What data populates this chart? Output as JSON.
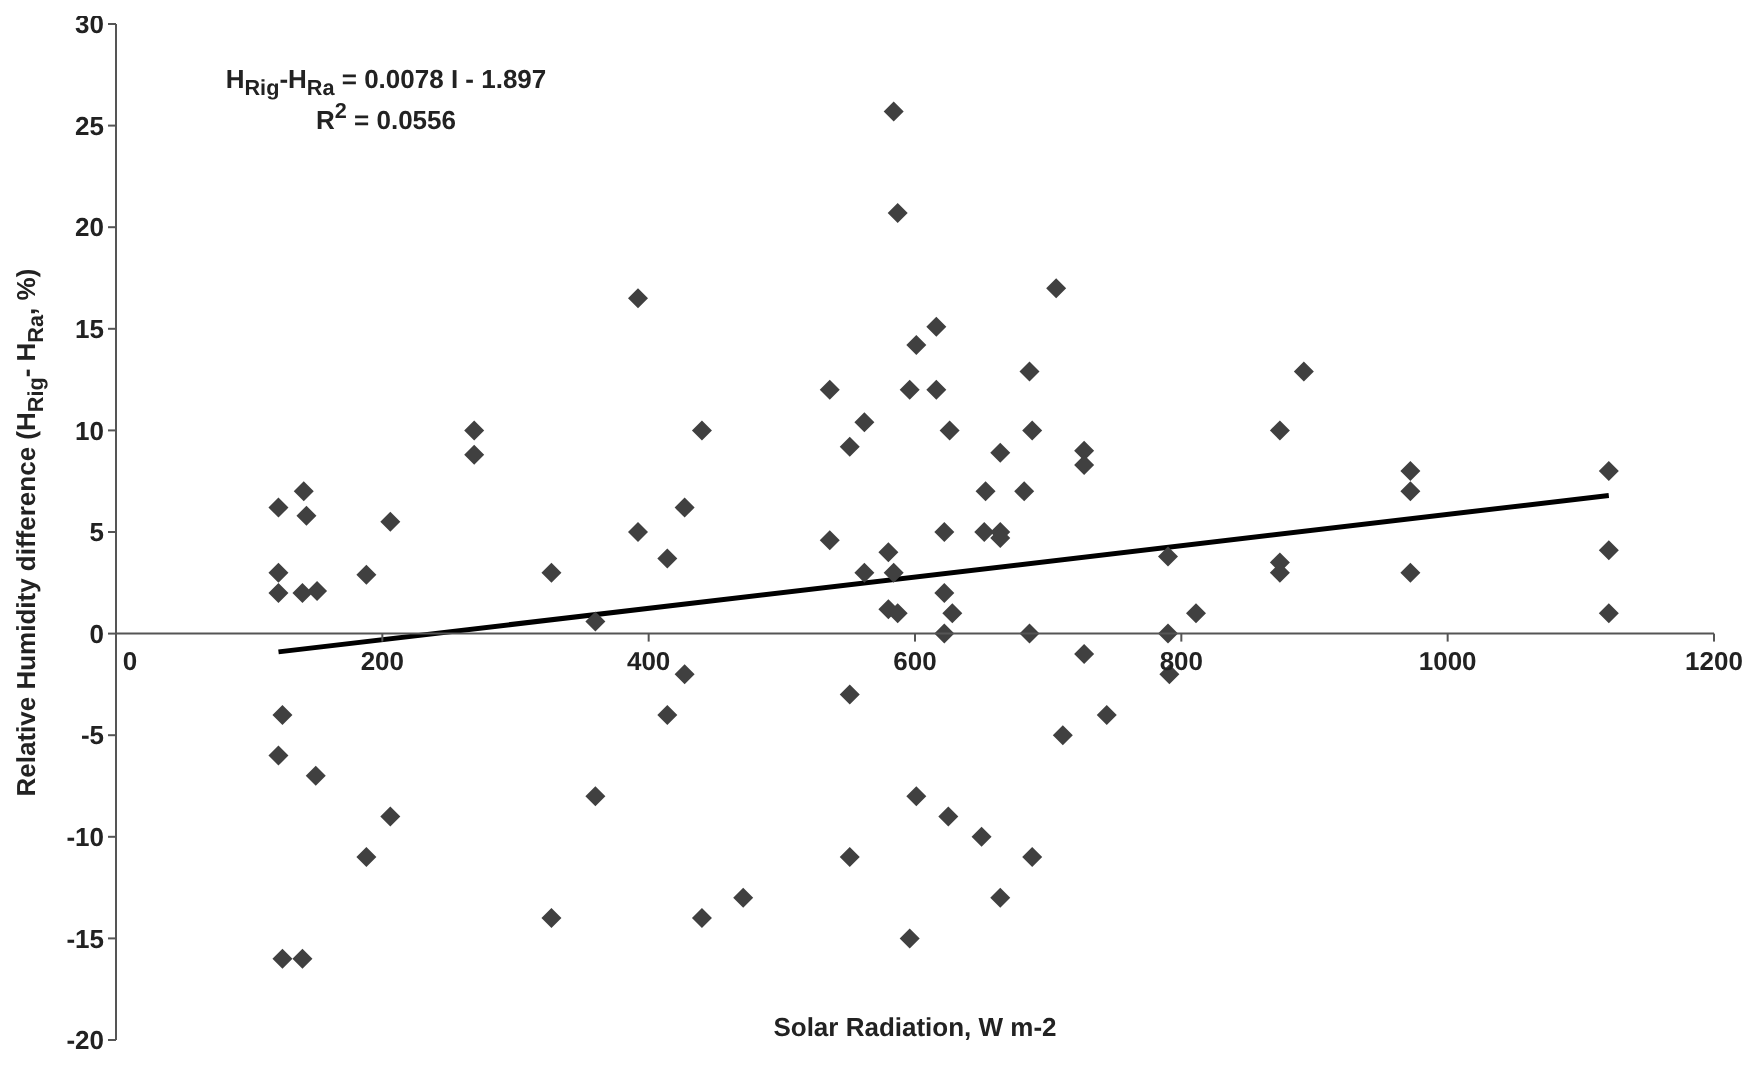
{
  "chart_data": {
    "type": "scatter",
    "xlabel": "Solar Radiation, W m-2",
    "ylabel": "Relative Humidity difference (H$_{Rig}$- H$_{Ra}$, %)",
    "annotations": [
      "H$_{Rig}$-H$_{Ra}$ = 0.0078 I - 1.897",
      "R$^{2}$ = 0.0556"
    ],
    "xlim": [
      0,
      1200
    ],
    "xticks": [
      0,
      200,
      400,
      600,
      800,
      1000,
      1200
    ],
    "ylim": [
      -20,
      30
    ],
    "yticks": [
      -20,
      -15,
      -10,
      -5,
      0,
      5,
      10,
      15,
      20,
      25,
      30
    ],
    "grid": false,
    "legend": false,
    "marker": "diamond",
    "series": [
      {
        "color": "#404040",
        "x": [
          122,
          122,
          122,
          141,
          143,
          140,
          151,
          188,
          206,
          269,
          269,
          327,
          360,
          392,
          392,
          414,
          427,
          440,
          536,
          536,
          551,
          562,
          562,
          584,
          587,
          601,
          616,
          596,
          616,
          626,
          706,
          686,
          688,
          664,
          653,
          682,
          727,
          727,
          622,
          652,
          664,
          664,
          580,
          584,
          622,
          580,
          587,
          628,
          622,
          686,
          790,
          790,
          791,
          811,
          874,
          892,
          874,
          874,
          972,
          972,
          972,
          1121,
          1121,
          1121,
          727,
          744,
          711,
          601,
          625,
          650,
          688,
          664,
          596,
          125,
          122,
          150,
          206,
          188,
          125,
          140,
          327,
          360,
          414,
          427,
          440,
          471,
          551,
          551
        ],
        "values": [
          6.2,
          3,
          2,
          7,
          5.8,
          2,
          2.1,
          2.9,
          5.5,
          10,
          8.8,
          3,
          0.6,
          16.5,
          5,
          3.7,
          6.2,
          10,
          12,
          4.6,
          9.2,
          10.4,
          3,
          25.7,
          20.7,
          14.2,
          15.1,
          12,
          12,
          10,
          17,
          12.9,
          10,
          8.9,
          7,
          7,
          9,
          8.3,
          5,
          5,
          5,
          4.7,
          4,
          3,
          2,
          1.2,
          1,
          1,
          0,
          0,
          3.8,
          0,
          -2,
          1,
          10,
          12.9,
          3.5,
          3,
          8,
          7,
          3,
          8,
          4.1,
          1,
          -1,
          -4,
          -5,
          -8,
          -9,
          -10,
          -11,
          -13,
          -15,
          -4,
          -6,
          -7,
          -9,
          -11,
          -16,
          -16,
          -14,
          -8,
          -4,
          -2,
          -14,
          -13,
          -3,
          -11
        ]
      },
      {
        "type": "line",
        "color": "#000000",
        "marker": "none",
        "x": [
          122,
          1121
        ],
        "values": [
          -0.9,
          6.8
        ]
      }
    ]
  }
}
